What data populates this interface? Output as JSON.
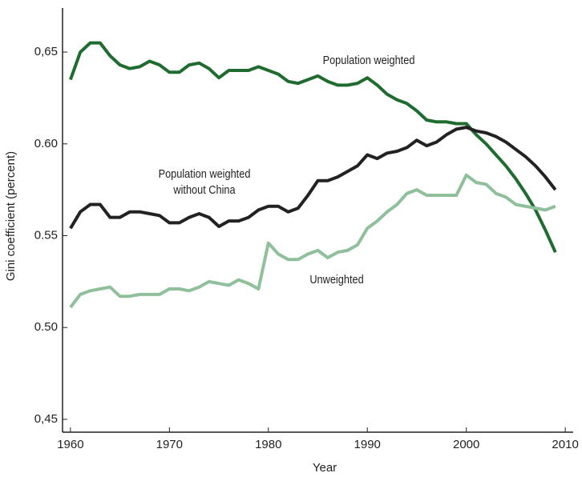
{
  "chart_data": {
    "type": "line",
    "x_label": "Year",
    "y_label": "Gini coefficient (percent)",
    "x": [
      1960,
      1961,
      1962,
      1963,
      1964,
      1965,
      1966,
      1967,
      1968,
      1969,
      1970,
      1971,
      1972,
      1973,
      1974,
      1975,
      1976,
      1977,
      1978,
      1979,
      1980,
      1981,
      1982,
      1983,
      1984,
      1985,
      1986,
      1987,
      1988,
      1989,
      1990,
      1991,
      1992,
      1993,
      1994,
      1995,
      1996,
      1997,
      1998,
      1999,
      2000,
      2001,
      2002,
      2003,
      2004,
      2005,
      2006,
      2007,
      2008,
      2009
    ],
    "series": [
      {
        "name": "Population weighted",
        "color": "#1f6b30",
        "values": [
          0.635,
          0.65,
          0.655,
          0.655,
          0.648,
          0.643,
          0.641,
          0.642,
          0.645,
          0.643,
          0.639,
          0.639,
          0.643,
          0.644,
          0.641,
          0.636,
          0.64,
          0.64,
          0.64,
          0.642,
          0.64,
          0.638,
          0.634,
          0.633,
          0.635,
          0.637,
          0.634,
          0.632,
          0.632,
          0.633,
          0.636,
          0.632,
          0.627,
          0.624,
          0.622,
          0.618,
          0.613,
          0.612,
          0.612,
          0.611,
          0.611,
          0.605,
          0.6,
          0.594,
          0.588,
          0.581,
          0.573,
          0.564,
          0.553,
          0.541
        ]
      },
      {
        "name": "Population weighted without China",
        "color": "#222222",
        "values": [
          0.554,
          0.563,
          0.567,
          0.567,
          0.56,
          0.56,
          0.563,
          0.563,
          0.562,
          0.561,
          0.557,
          0.557,
          0.56,
          0.562,
          0.56,
          0.555,
          0.558,
          0.558,
          0.56,
          0.564,
          0.566,
          0.566,
          0.563,
          0.565,
          0.572,
          0.58,
          0.58,
          0.582,
          0.585,
          0.588,
          0.594,
          0.592,
          0.595,
          0.596,
          0.598,
          0.602,
          0.599,
          0.601,
          0.605,
          0.608,
          0.609,
          0.607,
          0.606,
          0.604,
          0.601,
          0.597,
          0.593,
          0.588,
          0.582,
          0.575
        ]
      },
      {
        "name": "Unweighted",
        "color": "#8fc09b",
        "values": [
          0.511,
          0.518,
          0.52,
          0.521,
          0.522,
          0.517,
          0.517,
          0.518,
          0.518,
          0.518,
          0.521,
          0.521,
          0.52,
          0.522,
          0.525,
          0.524,
          0.523,
          0.526,
          0.524,
          0.521,
          0.546,
          0.54,
          0.537,
          0.537,
          0.54,
          0.542,
          0.538,
          0.541,
          0.542,
          0.545,
          0.554,
          0.558,
          0.563,
          0.567,
          0.573,
          0.575,
          0.572,
          0.572,
          0.572,
          0.572,
          0.583,
          0.579,
          0.578,
          0.573,
          0.571,
          0.567,
          0.566,
          0.565,
          0.564,
          0.566
        ]
      }
    ],
    "xlim": [
      1959.2,
      2010.8
    ],
    "xticks": [
      1960,
      1970,
      1980,
      1990,
      2000,
      2010
    ],
    "ylim": [
      0.443,
      0.674
    ],
    "yticks": [
      {
        "value": 0.45,
        "label": "0,45"
      },
      {
        "value": 0.5,
        "label": "0.50"
      },
      {
        "value": 0.55,
        "label": "0.55"
      },
      {
        "value": 0.6,
        "label": "0.60"
      },
      {
        "value": 0.65,
        "label": "0,65"
      }
    ],
    "grid": false
  }
}
